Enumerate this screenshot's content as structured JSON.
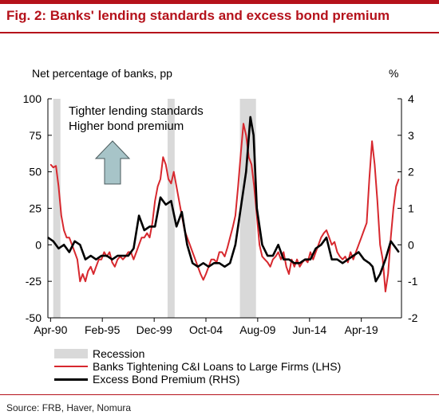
{
  "title": "Fig. 2: Banks' lending standards and excess bond premium",
  "source": "Source: FRB, Haver, Nomura",
  "chart_data": {
    "type": "line",
    "ylabel_left": "Net percentage of banks, pp",
    "ylabel_right": "%",
    "annotation": [
      "Tighter lending standards",
      "Higher bond premium"
    ],
    "annotation_arrow": "up",
    "x_tick_labels": [
      "Apr-90",
      "Feb-95",
      "Dec-99",
      "Oct-04",
      "Aug-09",
      "Jun-14",
      "Apr-19"
    ],
    "x_tick_values": [
      1990.25,
      1995.08,
      1999.92,
      2004.75,
      2009.58,
      2014.42,
      2019.25
    ],
    "xlim": [
      1990.0,
      2023.0
    ],
    "ylim_left": [
      -50,
      100
    ],
    "yticks_left": [
      -50,
      -25,
      0,
      25,
      50,
      75,
      100
    ],
    "ylim_right": [
      -2,
      4
    ],
    "yticks_right": [
      -2,
      -1,
      0,
      1,
      2,
      3,
      4
    ],
    "grid": false,
    "legend_position": "bottom",
    "recessions": [
      [
        1990.5,
        1991.17
      ],
      [
        2001.17,
        2001.83
      ],
      [
        2007.92,
        2009.42
      ]
    ],
    "series": [
      {
        "name": "Recession",
        "type": "shaded-band",
        "color": "#d9d9d9"
      },
      {
        "name": "Banks Tightening C&I Loans to Large Firms (LHS)",
        "axis": "left",
        "color": "#d7282e",
        "x": [
          1990.25,
          1990.5,
          1990.75,
          1991.0,
          1991.25,
          1991.5,
          1991.75,
          1992.0,
          1992.25,
          1992.5,
          1992.75,
          1993.0,
          1993.25,
          1993.5,
          1993.75,
          1994.0,
          1994.25,
          1994.5,
          1994.75,
          1995.0,
          1995.25,
          1995.5,
          1995.75,
          1996.0,
          1996.25,
          1996.5,
          1996.75,
          1997.0,
          1997.25,
          1997.5,
          1997.75,
          1998.0,
          1998.25,
          1998.5,
          1998.75,
          1999.0,
          1999.25,
          1999.5,
          1999.75,
          2000.0,
          2000.25,
          2000.5,
          2000.75,
          2001.0,
          2001.25,
          2001.5,
          2001.75,
          2002.0,
          2002.25,
          2002.5,
          2002.75,
          2003.0,
          2003.25,
          2003.5,
          2003.75,
          2004.0,
          2004.25,
          2004.5,
          2004.75,
          2005.0,
          2005.25,
          2005.5,
          2005.75,
          2006.0,
          2006.25,
          2006.5,
          2006.75,
          2007.0,
          2007.25,
          2007.5,
          2007.75,
          2008.0,
          2008.25,
          2008.5,
          2008.75,
          2009.0,
          2009.25,
          2009.5,
          2009.75,
          2010.0,
          2010.25,
          2010.5,
          2010.75,
          2011.0,
          2011.25,
          2011.5,
          2011.75,
          2012.0,
          2012.25,
          2012.5,
          2012.75,
          2013.0,
          2013.25,
          2013.5,
          2013.75,
          2014.0,
          2014.25,
          2014.5,
          2014.75,
          2015.0,
          2015.25,
          2015.5,
          2015.75,
          2016.0,
          2016.25,
          2016.5,
          2016.75,
          2017.0,
          2017.25,
          2017.5,
          2017.75,
          2018.0,
          2018.25,
          2018.5,
          2018.75,
          2019.0,
          2019.25,
          2019.5,
          2019.75,
          2020.0,
          2020.25,
          2020.5,
          2020.75,
          2021.0,
          2021.25,
          2021.5,
          2021.75,
          2022.0,
          2022.25,
          2022.5,
          2022.75
        ],
        "values": [
          55,
          53,
          54,
          40,
          20,
          10,
          5,
          5,
          0,
          -5,
          -10,
          -25,
          -20,
          -25,
          -18,
          -15,
          -20,
          -15,
          -10,
          -10,
          -5,
          -8,
          -5,
          -12,
          -15,
          -10,
          -8,
          -10,
          -8,
          -5,
          -5,
          -10,
          -5,
          0,
          5,
          5,
          8,
          5,
          15,
          30,
          40,
          45,
          60,
          55,
          45,
          42,
          50,
          40,
          30,
          20,
          10,
          5,
          0,
          -5,
          -10,
          -15,
          -20,
          -24,
          -20,
          -15,
          -10,
          -10,
          -12,
          -5,
          -5,
          -8,
          -2,
          5,
          12,
          20,
          40,
          62,
          83,
          75,
          60,
          55,
          40,
          20,
          0,
          -8,
          -10,
          -12,
          -15,
          -10,
          -8,
          -5,
          -10,
          -5,
          -15,
          -20,
          -10,
          -15,
          -10,
          -15,
          -12,
          -10,
          -12,
          -5,
          -10,
          -5,
          0,
          5,
          8,
          10,
          5,
          0,
          2,
          -5,
          -8,
          -10,
          -8,
          -12,
          -5,
          -10,
          -5,
          0,
          5,
          10,
          15,
          45,
          71,
          55,
          30,
          0,
          -10,
          -32,
          -20,
          5,
          25,
          40,
          45
        ]
      },
      {
        "name": "Excess Bond Premium (RHS)",
        "axis": "right",
        "color": "#000000",
        "x": [
          1990.0,
          1990.5,
          1991.0,
          1991.5,
          1992.0,
          1992.5,
          1993.0,
          1993.5,
          1994.0,
          1994.5,
          1995.0,
          1995.5,
          1996.0,
          1996.5,
          1997.0,
          1997.5,
          1998.0,
          1998.5,
          1999.0,
          1999.5,
          2000.0,
          2000.5,
          2001.0,
          2001.5,
          2002.0,
          2002.5,
          2003.0,
          2003.5,
          2004.0,
          2004.5,
          2005.0,
          2005.5,
          2006.0,
          2006.5,
          2007.0,
          2007.5,
          2008.0,
          2008.5,
          2008.9,
          2009.2,
          2009.5,
          2010.0,
          2010.5,
          2011.0,
          2011.5,
          2012.0,
          2012.5,
          2013.0,
          2013.5,
          2014.0,
          2014.5,
          2015.0,
          2015.5,
          2016.0,
          2016.5,
          2017.0,
          2017.5,
          2018.0,
          2018.5,
          2019.0,
          2019.5,
          2020.0,
          2020.3,
          2020.6,
          2021.0,
          2021.5,
          2022.0,
          2022.5,
          2022.75
        ],
        "values": [
          0.2,
          0.1,
          -0.1,
          0.0,
          -0.2,
          0.1,
          0.0,
          -0.4,
          -0.3,
          -0.4,
          -0.3,
          -0.3,
          -0.4,
          -0.3,
          -0.3,
          -0.3,
          -0.1,
          0.8,
          0.4,
          0.5,
          0.5,
          1.3,
          1.1,
          1.2,
          0.5,
          0.9,
          0.0,
          -0.5,
          -0.6,
          -0.5,
          -0.6,
          -0.5,
          -0.5,
          -0.6,
          -0.5,
          0.0,
          1.0,
          2.0,
          3.5,
          3.0,
          1.0,
          0.0,
          -0.3,
          -0.3,
          0.0,
          -0.4,
          -0.4,
          -0.5,
          -0.5,
          -0.4,
          -0.4,
          -0.1,
          0.0,
          0.2,
          -0.4,
          -0.4,
          -0.5,
          -0.4,
          -0.3,
          -0.2,
          -0.4,
          -0.5,
          -0.6,
          -1.0,
          -0.8,
          -0.4,
          0.1,
          -0.1,
          -0.2
        ]
      }
    ]
  }
}
